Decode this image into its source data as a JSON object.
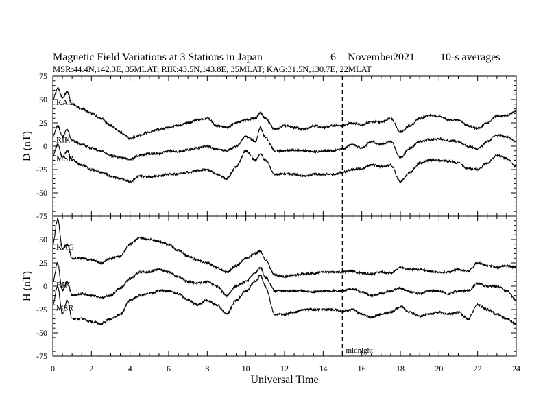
{
  "header": {
    "title": "Magnetic Field Variations at 3 Stations in Japan",
    "day": "6",
    "month": "November",
    "year": "2021",
    "averaging": "10-s averages",
    "stations_line": "MSR:44.4N,142.3E, 35MLAT;  RIK:43.5N,143.8E, 35MLAT;  KAG:31.5N,130.7E, 22MLAT"
  },
  "annotation": {
    "midnight_label": "midnight",
    "midnight_ut": 15
  },
  "colors": {
    "line": "#000000",
    "background": "#ffffff"
  },
  "chart_data": [
    {
      "type": "line",
      "panel": "D",
      "ylabel": "D (nT)",
      "xlim": [
        0,
        24
      ],
      "ylim": [
        -75,
        75
      ],
      "yticks": [
        "75",
        "50",
        "25",
        "0",
        "-25",
        "-50",
        "-75"
      ],
      "x": [
        0,
        0.25,
        0.5,
        0.75,
        1,
        1.5,
        2,
        2.5,
        3,
        3.5,
        4,
        4.5,
        5,
        5.5,
        6,
        6.5,
        7,
        7.5,
        8,
        8.5,
        9,
        9.5,
        10,
        10.5,
        10.75,
        11,
        11.5,
        12,
        12.5,
        13,
        13.5,
        14,
        14.5,
        15,
        15.5,
        16,
        16.5,
        17,
        17.5,
        18,
        18.5,
        19,
        19.5,
        20,
        20.5,
        21,
        21.5,
        22,
        22.5,
        23,
        23.5,
        24
      ],
      "series": [
        {
          "name": "KAG",
          "values": [
            50,
            62,
            52,
            58,
            45,
            40,
            35,
            30,
            22,
            15,
            8,
            12,
            15,
            18,
            20,
            22,
            25,
            28,
            30,
            22,
            20,
            25,
            28,
            30,
            36,
            30,
            18,
            22,
            20,
            18,
            22,
            20,
            22,
            22,
            25,
            23,
            26,
            26,
            30,
            15,
            22,
            30,
            33,
            32,
            28,
            28,
            22,
            19,
            25,
            32,
            33,
            37
          ]
        },
        {
          "name": "RIK",
          "values": [
            10,
            22,
            10,
            18,
            6,
            2,
            -2,
            -5,
            -10,
            -12,
            -14,
            -10,
            -8,
            -8,
            -5,
            -6,
            -4,
            -2,
            0,
            -3,
            -5,
            0,
            10,
            5,
            20,
            10,
            -5,
            -5,
            -4,
            -5,
            -6,
            -5,
            -5,
            -3,
            2,
            -2,
            5,
            2,
            5,
            -12,
            -2,
            5,
            7,
            8,
            6,
            5,
            0,
            -3,
            5,
            12,
            10,
            5
          ]
        },
        {
          "name": "MSR",
          "values": [
            -10,
            2,
            -12,
            -5,
            -15,
            -20,
            -25,
            -28,
            -32,
            -35,
            -38,
            -32,
            -33,
            -32,
            -30,
            -30,
            -28,
            -26,
            -25,
            -30,
            -35,
            -22,
            -5,
            -15,
            -8,
            -15,
            -30,
            -30,
            -30,
            -32,
            -30,
            -30,
            -30,
            -28,
            -25,
            -24,
            -20,
            -22,
            -20,
            -38,
            -28,
            -18,
            -15,
            -15,
            -16,
            -18,
            -24,
            -25,
            -18,
            -10,
            -13,
            -22
          ]
        }
      ]
    },
    {
      "type": "line",
      "panel": "H",
      "ylabel": "H (nT)",
      "xlabel": "Universal Time",
      "xlim": [
        0,
        24
      ],
      "ylim": [
        -75,
        75
      ],
      "xticks": [
        "0",
        "2",
        "4",
        "6",
        "8",
        "10",
        "12",
        "14",
        "16",
        "18",
        "20",
        "22",
        "24"
      ],
      "yticks": [
        "50",
        "25",
        "0",
        "-25",
        "-50",
        "-75"
      ],
      "x": [
        0,
        0.25,
        0.5,
        0.75,
        1,
        1.5,
        2,
        2.5,
        3,
        3.5,
        4,
        4.5,
        5,
        5.5,
        6,
        6.5,
        7,
        7.5,
        8,
        8.5,
        9,
        9.5,
        10,
        10.5,
        10.75,
        11,
        11.5,
        12,
        12.5,
        13,
        13.5,
        14,
        14.5,
        15,
        15.5,
        16,
        16.5,
        17,
        17.5,
        18,
        18.5,
        19,
        19.5,
        20,
        20.5,
        21,
        21.5,
        22,
        22.5,
        23,
        23.5,
        24
      ],
      "series": [
        {
          "name": "KAG",
          "values": [
            45,
            72,
            40,
            45,
            30,
            30,
            28,
            25,
            30,
            32,
            45,
            52,
            50,
            48,
            45,
            38,
            32,
            28,
            25,
            20,
            15,
            22,
            30,
            35,
            38,
            28,
            12,
            10,
            12,
            13,
            14,
            15,
            15,
            15,
            16,
            14,
            13,
            15,
            14,
            20,
            18,
            18,
            16,
            15,
            15,
            18,
            16,
            25,
            22,
            20,
            22,
            20
          ]
        },
        {
          "name": "RIK",
          "values": [
            5,
            25,
            -5,
            5,
            -10,
            -8,
            -10,
            -12,
            -10,
            -2,
            8,
            15,
            15,
            18,
            15,
            10,
            5,
            3,
            5,
            0,
            -10,
            0,
            5,
            15,
            20,
            10,
            -5,
            -5,
            -5,
            -5,
            -6,
            -5,
            -5,
            -5,
            -3,
            -6,
            -10,
            -8,
            -5,
            -2,
            -6,
            -8,
            -5,
            -5,
            -8,
            -5,
            -5,
            3,
            0,
            0,
            -5,
            -15
          ]
        },
        {
          "name": "MSR",
          "values": [
            -20,
            0,
            -30,
            -15,
            -35,
            -35,
            -38,
            -40,
            -35,
            -30,
            -15,
            -10,
            -8,
            -5,
            -5,
            -8,
            -15,
            -20,
            -15,
            -20,
            -30,
            -15,
            -5,
            5,
            12,
            0,
            -30,
            -30,
            -28,
            -25,
            -25,
            -25,
            -25,
            -27,
            -25,
            -30,
            -33,
            -30,
            -28,
            -22,
            -28,
            -32,
            -30,
            -28,
            -30,
            -28,
            -35,
            -20,
            -25,
            -30,
            -35,
            -40
          ]
        }
      ]
    }
  ]
}
